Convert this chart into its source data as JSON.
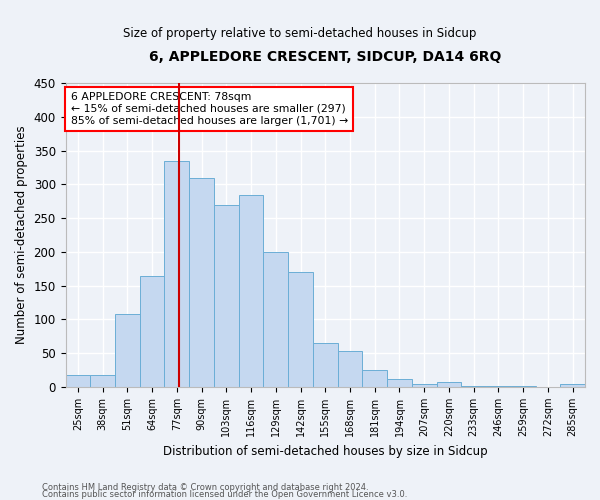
{
  "title": "6, APPLEDORE CRESCENT, SIDCUP, DA14 6RQ",
  "subtitle": "Size of property relative to semi-detached houses in Sidcup",
  "xlabel": "Distribution of semi-detached houses by size in Sidcup",
  "ylabel": "Number of semi-detached properties",
  "footnote1": "Contains HM Land Registry data © Crown copyright and database right 2024.",
  "footnote2": "Contains public sector information licensed under the Open Government Licence v3.0.",
  "bar_labels": [
    "25sqm",
    "38sqm",
    "51sqm",
    "64sqm",
    "77sqm",
    "90sqm",
    "103sqm",
    "116sqm",
    "129sqm",
    "142sqm",
    "155sqm",
    "168sqm",
    "181sqm",
    "194sqm",
    "207sqm",
    "220sqm",
    "233sqm",
    "246sqm",
    "259sqm",
    "272sqm",
    "285sqm"
  ],
  "bar_values": [
    18,
    18,
    108,
    165,
    335,
    310,
    270,
    285,
    200,
    170,
    65,
    53,
    25,
    12,
    5,
    8,
    2,
    2,
    1,
    0,
    5
  ],
  "bar_color": "#c5d8f0",
  "bar_edge_color": "#6baed6",
  "highlight_color": "#cc0000",
  "annotation_title": "6 APPLEDORE CRESCENT: 78sqm",
  "annotation_line1": "← 15% of semi-detached houses are smaller (297)",
  "annotation_line2": "85% of semi-detached houses are larger (1,701) →",
  "ylim": [
    0,
    450
  ],
  "yticks": [
    0,
    50,
    100,
    150,
    200,
    250,
    300,
    350,
    400,
    450
  ],
  "background_color": "#eef2f8",
  "grid_color": "#ffffff"
}
